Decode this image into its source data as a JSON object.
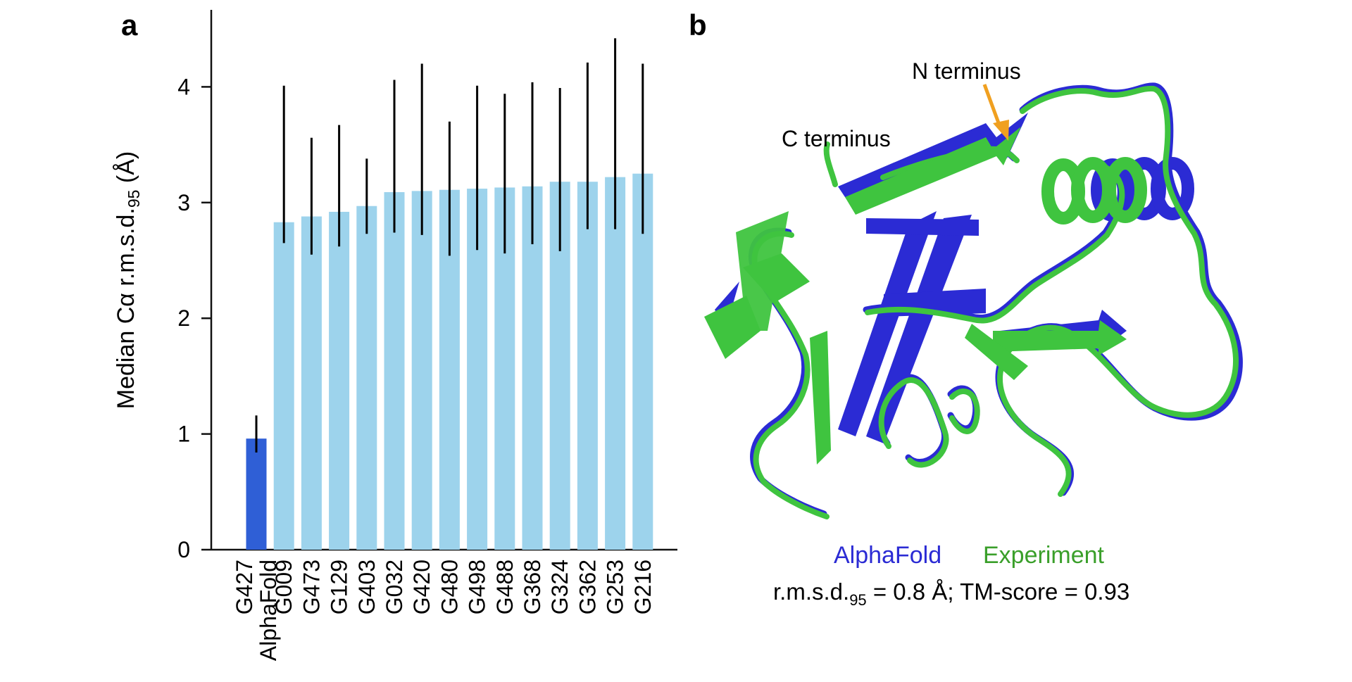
{
  "panels": {
    "a": {
      "letter": "a"
    },
    "b": {
      "letter": "b"
    }
  },
  "chart_data": {
    "type": "bar",
    "ylabel_main": "Median Cα r.m.s.d.",
    "ylabel_sub": "95",
    "ylabel_unit": " (Å)",
    "ylim": [
      0,
      4.6
    ],
    "yticks": [
      "0",
      "1",
      "2",
      "3",
      "4"
    ],
    "grid": false,
    "categories": [
      "G427 AlphaFold",
      "G009",
      "G473",
      "G129",
      "G403",
      "G032",
      "G420",
      "G480",
      "G498",
      "G488",
      "G368",
      "G324",
      "G362",
      "G253",
      "G216"
    ],
    "category_lines": [
      [
        "G427",
        "AlphaFold"
      ],
      [
        "G009"
      ],
      [
        "G473"
      ],
      [
        "G129"
      ],
      [
        "G403"
      ],
      [
        "G032"
      ],
      [
        "G420"
      ],
      [
        "G480"
      ],
      [
        "G498"
      ],
      [
        "G488"
      ],
      [
        "G368"
      ],
      [
        "G324"
      ],
      [
        "G362"
      ],
      [
        "G253"
      ],
      [
        "G216"
      ]
    ],
    "values": [
      0.96,
      2.83,
      2.88,
      2.92,
      2.97,
      3.09,
      3.1,
      3.11,
      3.12,
      3.13,
      3.14,
      3.18,
      3.18,
      3.22,
      3.25
    ],
    "err_low": [
      0.84,
      2.65,
      2.55,
      2.62,
      2.73,
      2.74,
      2.72,
      2.54,
      2.59,
      2.56,
      2.64,
      2.58,
      2.77,
      2.77,
      2.73
    ],
    "err_high": [
      1.16,
      4.01,
      3.56,
      3.67,
      3.38,
      4.06,
      4.2,
      3.7,
      4.01,
      3.94,
      4.04,
      3.99,
      4.21,
      4.42,
      4.2
    ],
    "colors": {
      "highlight": "#2f5fd6",
      "others": "#9dd3ec",
      "error": "#000000"
    }
  },
  "structure": {
    "label_n_terminus": "N terminus",
    "label_c_terminus": "C terminus",
    "legend_alphafold": "AlphaFold",
    "legend_experiment": "Experiment",
    "metrics_prefix": "r.m.s.d.",
    "metrics_sub": "95",
    "metrics_suffix": " = 0.8 Å; TM-score = 0.93",
    "colors": {
      "alphafold": "#2b2bd4",
      "experiment": "#3fc43f",
      "arrow": "#f0a020"
    }
  }
}
